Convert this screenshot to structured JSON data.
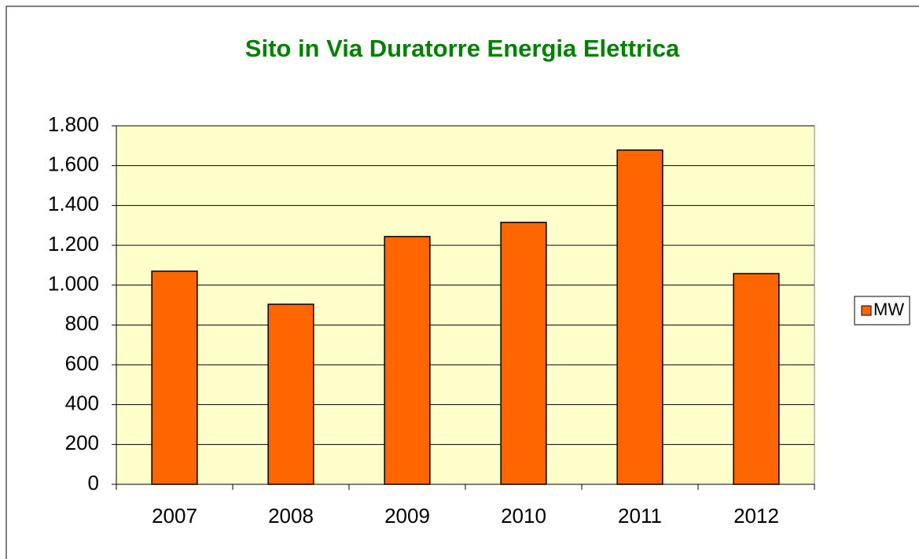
{
  "chart_data": {
    "type": "bar",
    "title": "Sito in Via Duratorre Energia Elettrica",
    "categories": [
      "2007",
      "2008",
      "2009",
      "2010",
      "2011",
      "2012"
    ],
    "series": [
      {
        "name": "MW",
        "color": "#ff6600",
        "values": [
          1070,
          904,
          1244,
          1315,
          1678,
          1058
        ]
      }
    ],
    "ylim": [
      0,
      1800
    ],
    "yticks": [
      0,
      200,
      400,
      600,
      800,
      {
        "value": 1000,
        "label": "1.000"
      },
      {
        "value": 1200,
        "label": "1.200"
      },
      {
        "value": 1400,
        "label": "1.400"
      },
      {
        "value": 1600,
        "label": "1.600"
      },
      {
        "value": 1800,
        "label": "1.800"
      }
    ],
    "grid": true,
    "legend": "right"
  }
}
